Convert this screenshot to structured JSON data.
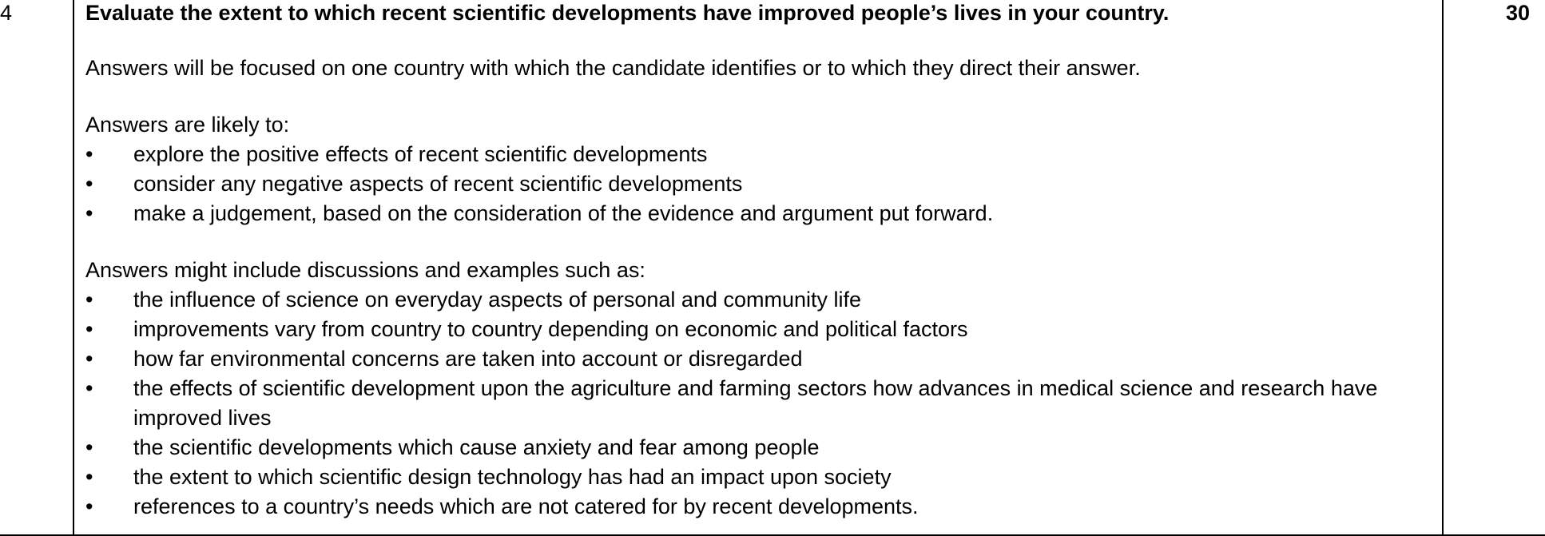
{
  "question_number": "4",
  "marks": "30",
  "question_text": "Evaluate the extent to which recent scientific developments have improved people’s lives in your country.",
  "intro": "Answers will be focused on one country with which the candidate identifies or to which they direct their answer.",
  "likely": {
    "heading": "Answers are likely to:",
    "items": [
      "explore the positive effects of recent scientific developments",
      "consider any negative aspects of recent scientific developments",
      "make a judgement, based on the consideration of the evidence and argument put forward."
    ]
  },
  "examples": {
    "heading": "Answers might include discussions and examples such as:",
    "items": [
      "the influence of science on everyday aspects of personal and community life",
      "improvements vary from country to country depending on economic and political factors",
      "how far environmental concerns are taken into account or disregarded",
      "the effects of scientific development upon the agriculture and farming sectors how advances in medical science and research have improved lives",
      "the scientific developments which cause anxiety and fear among people",
      "the extent to which scientific design technology has had an impact upon society",
      "references to a country’s needs which are not catered for by recent developments."
    ]
  },
  "bullet_glyph": "•"
}
